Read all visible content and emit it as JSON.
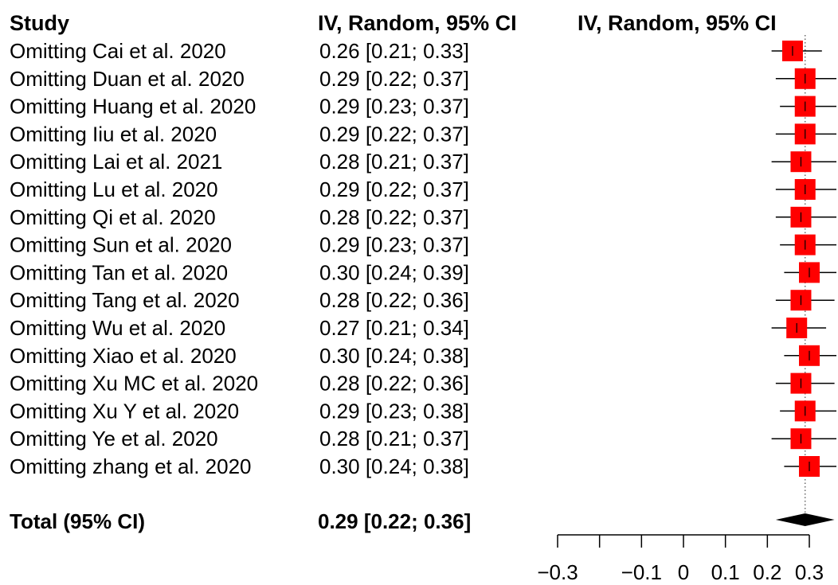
{
  "chart_data": {
    "type": "forest",
    "headers": {
      "study": "Study",
      "ci_text": "IV, Random, 95% CI",
      "plot": "IV, Random, 95% CI"
    },
    "rows": [
      {
        "label": "Omitting Cai et al. 2020",
        "est": 0.26,
        "lo": 0.21,
        "hi": 0.33,
        "text": "0.26 [0.21; 0.33]"
      },
      {
        "label": "Omitting Duan et al. 2020",
        "est": 0.29,
        "lo": 0.22,
        "hi": 0.37,
        "text": "0.29 [0.22; 0.37]"
      },
      {
        "label": "Omitting Huang et al. 2020",
        "est": 0.29,
        "lo": 0.23,
        "hi": 0.37,
        "text": "0.29 [0.23; 0.37]"
      },
      {
        "label": "Omitting Iiu et al. 2020",
        "est": 0.29,
        "lo": 0.22,
        "hi": 0.37,
        "text": "0.29 [0.22; 0.37]"
      },
      {
        "label": "Omitting Lai et al. 2021",
        "est": 0.28,
        "lo": 0.21,
        "hi": 0.37,
        "text": "0.28 [0.21; 0.37]"
      },
      {
        "label": "Omitting Lu et al. 2020",
        "est": 0.29,
        "lo": 0.22,
        "hi": 0.37,
        "text": "0.29 [0.22; 0.37]"
      },
      {
        "label": "Omitting Qi et al. 2020",
        "est": 0.28,
        "lo": 0.22,
        "hi": 0.37,
        "text": "0.28 [0.22; 0.37]"
      },
      {
        "label": "Omitting Sun et al. 2020",
        "est": 0.29,
        "lo": 0.23,
        "hi": 0.37,
        "text": "0.29 [0.23; 0.37]"
      },
      {
        "label": "Omitting Tan et al. 2020",
        "est": 0.3,
        "lo": 0.24,
        "hi": 0.39,
        "text": "0.30 [0.24; 0.39]"
      },
      {
        "label": "Omitting Tang et al. 2020",
        "est": 0.28,
        "lo": 0.22,
        "hi": 0.36,
        "text": "0.28 [0.22; 0.36]"
      },
      {
        "label": "Omitting Wu et al. 2020",
        "est": 0.27,
        "lo": 0.21,
        "hi": 0.34,
        "text": "0.27 [0.21; 0.34]"
      },
      {
        "label": "Omitting Xiao et al. 2020",
        "est": 0.3,
        "lo": 0.24,
        "hi": 0.38,
        "text": "0.30 [0.24; 0.38]"
      },
      {
        "label": "Omitting Xu MC et al. 2020",
        "est": 0.28,
        "lo": 0.22,
        "hi": 0.36,
        "text": "0.28 [0.22; 0.36]"
      },
      {
        "label": "Omitting Xu Y et al. 2020",
        "est": 0.29,
        "lo": 0.23,
        "hi": 0.38,
        "text": "0.29 [0.23; 0.38]"
      },
      {
        "label": "Omitting Ye et al. 2020",
        "est": 0.28,
        "lo": 0.21,
        "hi": 0.37,
        "text": "0.28 [0.21; 0.37]"
      },
      {
        "label": "Omitting zhang et al. 2020",
        "est": 0.3,
        "lo": 0.24,
        "hi": 0.38,
        "text": "0.30 [0.24; 0.38]"
      }
    ],
    "total": {
      "label": "Total (95% CI)",
      "est": 0.29,
      "lo": 0.22,
      "hi": 0.36,
      "text": "0.29 [0.22; 0.36]"
    },
    "xaxis": {
      "ticks": [
        -0.3,
        -0.2,
        -0.1,
        0,
        0.1,
        0.2,
        0.3
      ],
      "tick_labels": [
        "−0.3",
        "",
        "−0.1",
        "0",
        "0.1",
        "0.2",
        "0.3"
      ],
      "range": [
        -0.3,
        0.3
      ]
    },
    "reference_line": 0.29,
    "colors": {
      "box": "#ff0000",
      "line": "#000000",
      "diamond": "#000000",
      "ref_line": "#555555"
    }
  }
}
